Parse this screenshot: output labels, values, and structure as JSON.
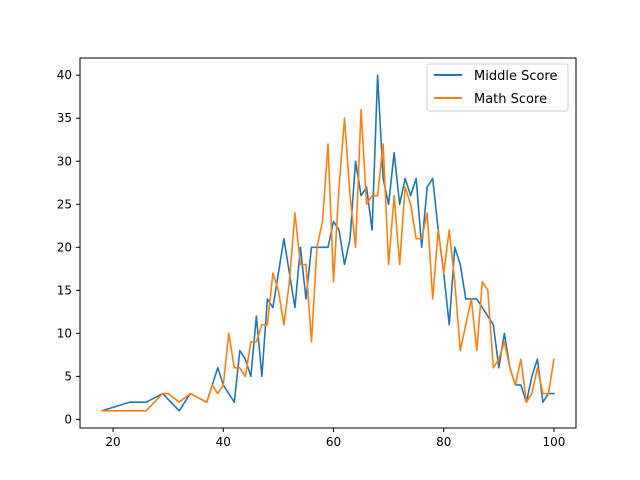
{
  "chart_data": {
    "type": "line",
    "title": "",
    "xlabel": "",
    "ylabel": "",
    "xlim": [
      14,
      104
    ],
    "ylim": [
      -1,
      42
    ],
    "xticks": [
      20,
      40,
      60,
      80,
      100
    ],
    "yticks": [
      0,
      5,
      10,
      15,
      20,
      25,
      30,
      35,
      40
    ],
    "grid": false,
    "legend_position": "top-right",
    "series": [
      {
        "name": "Middle Score",
        "color": "#1f77b4",
        "x": [
          18,
          23,
          26,
          29,
          32,
          34,
          37,
          39,
          40,
          42,
          43,
          44,
          45,
          46,
          47,
          48,
          49,
          50,
          51,
          52,
          53,
          54,
          55,
          56,
          57,
          58,
          59,
          60,
          61,
          62,
          63,
          64,
          65,
          66,
          67,
          68,
          69,
          70,
          71,
          72,
          73,
          74,
          75,
          76,
          77,
          78,
          79,
          80,
          81,
          82,
          83,
          84,
          85,
          86,
          87,
          88,
          89,
          90,
          91,
          92,
          93,
          94,
          95,
          96,
          97,
          98,
          99,
          100
        ],
        "y": [
          1,
          2,
          2,
          3,
          1,
          3,
          2,
          6,
          4,
          2,
          8,
          7,
          5,
          12,
          5,
          14,
          13,
          17,
          21,
          17,
          13,
          20,
          14,
          20,
          20,
          20,
          20,
          23,
          22,
          18,
          21,
          30,
          26,
          27,
          22,
          40,
          28,
          25,
          31,
          25,
          28,
          26,
          28,
          20,
          27,
          28,
          22,
          17,
          11,
          20,
          18,
          14,
          14,
          14,
          13,
          12,
          11,
          6,
          10,
          6,
          4,
          4,
          2,
          5,
          7,
          2,
          3,
          3
        ]
      },
      {
        "name": "Math Score",
        "color": "#ff7f0e",
        "x": [
          18,
          22,
          26,
          29,
          30,
          32,
          34,
          37,
          38,
          39,
          40,
          41,
          42,
          43,
          44,
          45,
          46,
          47,
          48,
          49,
          50,
          51,
          52,
          53,
          54,
          55,
          56,
          57,
          58,
          59,
          60,
          61,
          62,
          63,
          64,
          65,
          66,
          67,
          68,
          69,
          70,
          71,
          72,
          73,
          74,
          75,
          76,
          77,
          78,
          79,
          80,
          81,
          82,
          83,
          84,
          85,
          86,
          87,
          88,
          89,
          90,
          91,
          92,
          93,
          94,
          95,
          96,
          97,
          98,
          99,
          100
        ],
        "y": [
          1,
          1,
          1,
          3,
          3,
          2,
          3,
          2,
          4,
          3,
          4,
          10,
          6,
          6,
          5,
          9,
          9,
          11,
          11,
          17,
          15,
          11,
          16,
          24,
          18,
          18,
          9,
          20,
          23,
          32,
          16,
          27,
          35,
          26,
          20,
          36,
          25,
          26,
          26,
          32,
          18,
          26,
          18,
          27,
          25,
          21,
          21,
          24,
          14,
          22,
          17,
          22,
          16,
          8,
          11,
          14,
          8,
          16,
          15,
          6,
          7,
          9,
          6,
          4,
          7,
          2,
          3,
          6,
          3,
          3,
          7
        ]
      }
    ]
  }
}
